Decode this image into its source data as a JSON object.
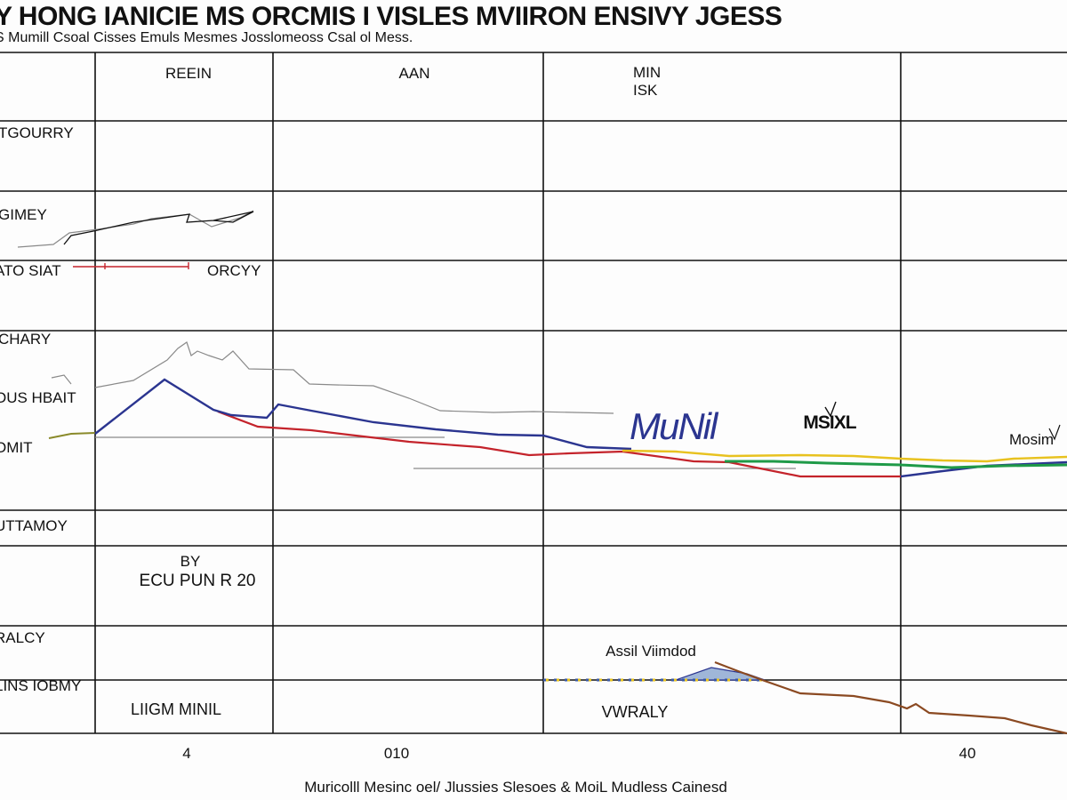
{
  "title": "Y HONG IANICIE MS ORCMIS I VISLES MVIIRON ENSIVY JGESS",
  "subtitle": "S Mumill Csoal Cisses Emuls Mesmes Josslomeoss Csal ol Mess.",
  "xlabel": "Muricolll Mesinc oel/ Jlussies Slesoes & MoiL Mudless Cainesd",
  "chart_data": {
    "type": "line",
    "title": "Y HONG IANICIE MS ORCMIS I VISLES MVIIRON ENSIVY JGESS",
    "subtitle": "S Mumill Csoal Cisses Emuls Mesmes Josslomeoss Csal ol Mess.",
    "xlabel": "Muricolll Mesinc oel/ Jlussies Slesoes & MoiL Mudless Cainesd",
    "ylabel": "",
    "x_ticks": [
      "4",
      "010",
      "40"
    ],
    "column_headers": [
      "REEIN",
      "AAN",
      "MIN",
      "ISK"
    ],
    "row_labels": [
      "TGOURRY",
      "GIMEY",
      "ATO SIAT",
      "CHARY",
      "OUS HBAIT",
      "OMIT",
      "UTTAMOY",
      "RALCY",
      "LINS IOBMY"
    ],
    "cell_labels": [
      "ORCYY",
      "BY",
      "ECU PUN R 20",
      "LIIGM MINIL",
      "Assil Viimdod",
      "VWRALY"
    ],
    "annotations": [
      "MuNil",
      "MSIXL",
      "Mosim"
    ],
    "grid": true,
    "colors": {
      "navy": "#2b3590",
      "red": "#c4232b",
      "gray": "#8a8a8a",
      "yellow": "#e8c21f",
      "green": "#1f9a48",
      "brown": "#8b4a22",
      "olive": "#8a8a2a"
    }
  }
}
